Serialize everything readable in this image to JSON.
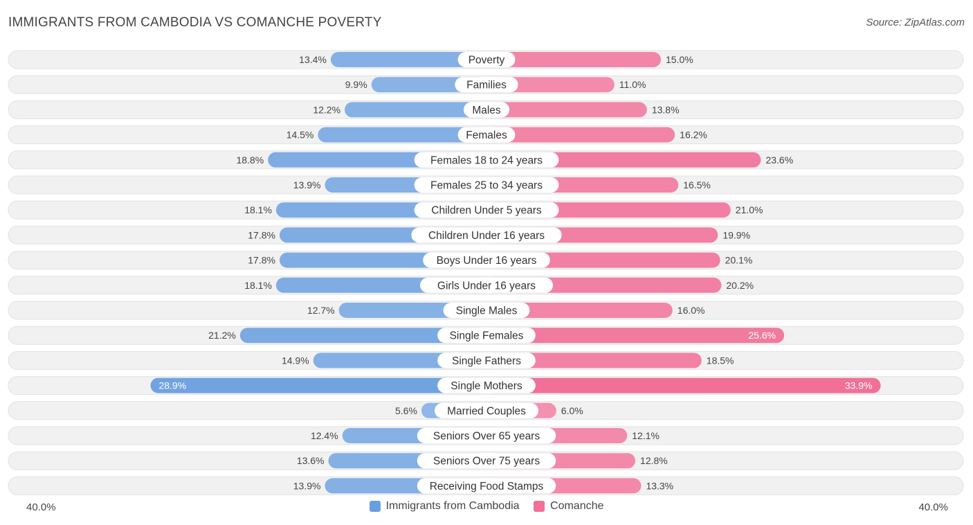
{
  "title": "IMMIGRANTS FROM CAMBODIA VS COMANCHE POVERTY",
  "source": "Source: ZipAtlas.com",
  "colors": {
    "left": "#6a9fdf",
    "left_light": "#a9c8ec",
    "right": "#f07098",
    "right_light": "#f6a9c2",
    "row_bg": "#f1f1f1"
  },
  "chart_data": {
    "type": "bar",
    "orientation": "diverging-horizontal",
    "title": "IMMIGRANTS FROM CAMBODIA VS COMANCHE POVERTY",
    "xlim": [
      -40,
      40
    ],
    "axis_left_label": "40.0%",
    "axis_right_label": "40.0%",
    "categories": [
      "Poverty",
      "Families",
      "Males",
      "Females",
      "Females 18 to 24 years",
      "Females 25 to 34 years",
      "Children Under 5 years",
      "Children Under 16 years",
      "Boys Under 16 years",
      "Girls Under 16 years",
      "Single Males",
      "Single Females",
      "Single Fathers",
      "Single Mothers",
      "Married Couples",
      "Seniors Over 65 years",
      "Seniors Over 75 years",
      "Receiving Food Stamps"
    ],
    "series": [
      {
        "name": "Immigrants from Cambodia",
        "values": [
          13.4,
          9.9,
          12.2,
          14.5,
          18.8,
          13.9,
          18.1,
          17.8,
          17.8,
          18.1,
          12.7,
          21.2,
          14.9,
          28.9,
          5.6,
          12.4,
          13.6,
          13.9
        ],
        "labels": [
          "13.4%",
          "9.9%",
          "12.2%",
          "14.5%",
          "18.8%",
          "13.9%",
          "18.1%",
          "17.8%",
          "17.8%",
          "18.1%",
          "12.7%",
          "21.2%",
          "14.9%",
          "28.9%",
          "5.6%",
          "12.4%",
          "13.6%",
          "13.9%"
        ]
      },
      {
        "name": "Comanche",
        "values": [
          15.0,
          11.0,
          13.8,
          16.2,
          23.6,
          16.5,
          21.0,
          19.9,
          20.1,
          20.2,
          16.0,
          25.6,
          18.5,
          33.9,
          6.0,
          12.1,
          12.8,
          13.3
        ],
        "labels": [
          "15.0%",
          "11.0%",
          "13.8%",
          "16.2%",
          "23.6%",
          "16.5%",
          "21.0%",
          "19.9%",
          "20.1%",
          "20.2%",
          "16.0%",
          "25.6%",
          "18.5%",
          "33.9%",
          "6.0%",
          "12.1%",
          "12.8%",
          "13.3%"
        ]
      }
    ],
    "legend": [
      "Immigrants from Cambodia",
      "Comanche"
    ]
  }
}
